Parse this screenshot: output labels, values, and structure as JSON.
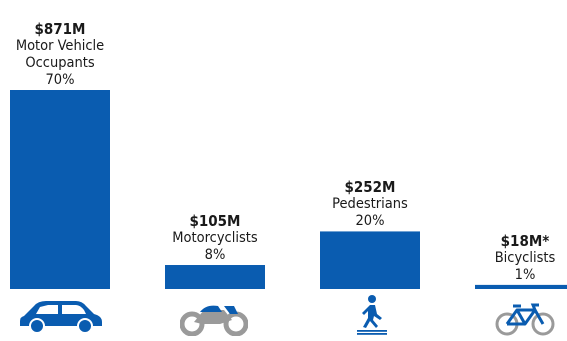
{
  "colors": {
    "bar": "#0a5cb0",
    "icon_fill": "#0a5cb0",
    "icon_light": "#9a9a9a"
  },
  "chart_data": {
    "type": "bar",
    "categories": [
      "Motor Vehicle Occupants",
      "Motorcyclists",
      "Pedestrians",
      "Bicyclists"
    ],
    "values": [
      871,
      105,
      252,
      18
    ],
    "value_labels": [
      "$871M",
      "$105M",
      "$252M",
      "$18M*"
    ],
    "percent_labels": [
      "70%",
      "8%",
      "20%",
      "1%"
    ],
    "units": "$M",
    "ylim": [
      0,
      871
    ],
    "grid": false,
    "icons": [
      "car-icon",
      "motorcycle-icon",
      "pedestrian-icon",
      "bicycle-icon"
    ]
  }
}
